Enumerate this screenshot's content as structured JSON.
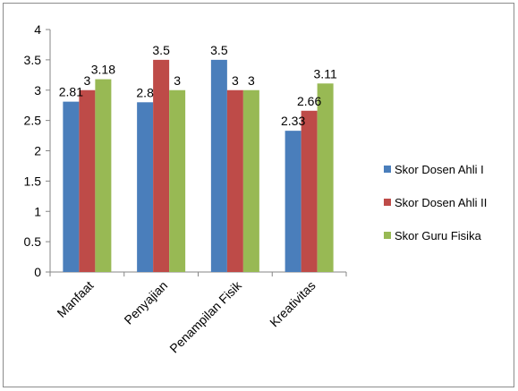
{
  "chart_data": {
    "type": "bar",
    "title": "",
    "xlabel": "",
    "ylabel": "",
    "categories": [
      "Manfaat",
      "Penyajian",
      "Penampilan Fisik",
      "Kreativitas"
    ],
    "series": [
      {
        "name": "Skor Dosen Ahli I",
        "color": "#4a7ebb",
        "values": [
          2.81,
          2.8,
          3.5,
          2.33
        ]
      },
      {
        "name": "Skor Dosen Ahli II",
        "color": "#be4b48",
        "values": [
          3,
          3.5,
          3,
          2.66
        ]
      },
      {
        "name": "Skor Guru Fisika",
        "color": "#98b954",
        "values": [
          3.18,
          3,
          3,
          3.11
        ]
      }
    ],
    "data_labels": [
      [
        "2.81",
        "2.8",
        "3.5",
        "2.33"
      ],
      [
        "3",
        "3.5",
        "3",
        "2.66"
      ],
      [
        "3.18",
        "3",
        "3",
        "3.11"
      ]
    ],
    "ylim": [
      0,
      4
    ],
    "yticks": [
      "0",
      "0.5",
      "1",
      "1.5",
      "2",
      "2.5",
      "3",
      "3.5",
      "4"
    ],
    "grid": false,
    "legend_position": "right"
  }
}
